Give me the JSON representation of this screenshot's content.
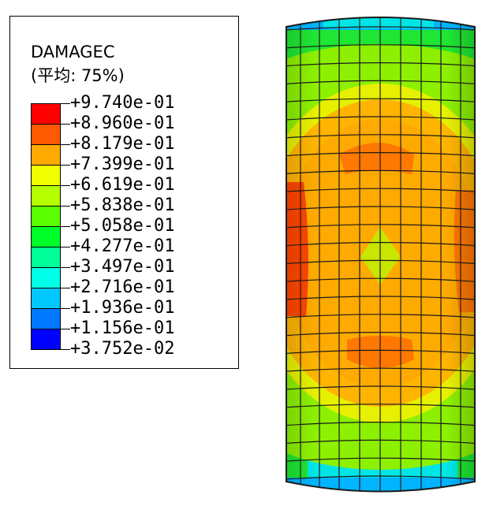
{
  "legend": {
    "title": "DAMAGEC",
    "subtitle": "(平均: 75%)",
    "levels": [
      {
        "label": "+9.740e-01",
        "color": "#ff0000"
      },
      {
        "label": "+8.960e-01",
        "color": "#ff5a00"
      },
      {
        "label": "+8.179e-01",
        "color": "#ffb400"
      },
      {
        "label": "+7.399e-01",
        "color": "#f5ff00"
      },
      {
        "label": "+6.619e-01",
        "color": "#aaff00"
      },
      {
        "label": "+5.838e-01",
        "color": "#55ff00"
      },
      {
        "label": "+5.058e-01",
        "color": "#00ff28"
      },
      {
        "label": "+4.277e-01",
        "color": "#00ff96"
      },
      {
        "label": "+3.497e-01",
        "color": "#00ffe6"
      },
      {
        "label": "+2.716e-01",
        "color": "#00c8ff"
      },
      {
        "label": "+1.936e-01",
        "color": "#0078ff"
      },
      {
        "label": "+1.156e-01",
        "color": "#0028ff"
      },
      {
        "label": "+3.752e-02",
        "color": null
      }
    ],
    "swatch_colors": [
      "#ff0000",
      "#ff5a00",
      "#ffaa00",
      "#f0ff00",
      "#b4ff00",
      "#5aff00",
      "#00ff28",
      "#00ff96",
      "#00ffe6",
      "#00c8ff",
      "#0078ff",
      "#0000ff"
    ]
  },
  "model": {
    "name": "cylinder-contour-plot",
    "colors": {
      "cap": "#00b4ff",
      "cyan": "#00e6e6",
      "green": "#1ee632",
      "lightgreen": "#8cf000",
      "yellow": "#e6f000",
      "orange": "#ffb400",
      "darkorange": "#ff7800",
      "red": "#ff4600",
      "mesh": "#1a1a1a"
    }
  }
}
